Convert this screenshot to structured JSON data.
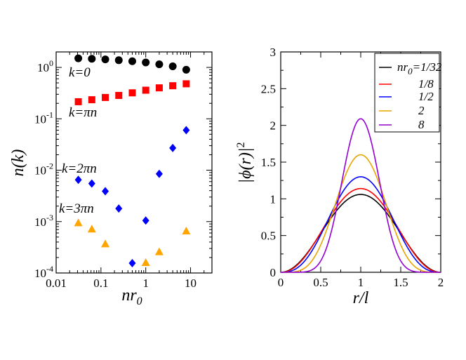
{
  "chart_data": [
    {
      "type": "scatter",
      "xscale": "log",
      "yscale": "log",
      "xlim": [
        0.01,
        30
      ],
      "ylim": [
        0.0001,
        2
      ],
      "xlabel_main": "nr",
      "xlabel_sub": "0",
      "ylabel": "n(k)",
      "xticks": [
        {
          "value": 0.01,
          "label": "0.01"
        },
        {
          "value": 0.1,
          "label": "0.1"
        },
        {
          "value": 1,
          "label": "1"
        },
        {
          "value": 10,
          "label": "10"
        }
      ],
      "yticks": [
        {
          "value": 0.0001,
          "base": "10",
          "exp": "-4"
        },
        {
          "value": 0.001,
          "base": "10",
          "exp": "-3"
        },
        {
          "value": 0.01,
          "base": "10",
          "exp": "-2"
        },
        {
          "value": 0.1,
          "base": "10",
          "exp": "-1"
        },
        {
          "value": 1,
          "base": "10",
          "exp": "0"
        }
      ],
      "series": [
        {
          "name": "k=0",
          "color": "#000000",
          "marker": "circle",
          "x": [
            0.03125,
            0.0625,
            0.125,
            0.25,
            0.5,
            1,
            2,
            4,
            8
          ],
          "y": [
            1.5,
            1.47,
            1.43,
            1.38,
            1.32,
            1.25,
            1.15,
            1.05,
            0.9
          ]
        },
        {
          "name": "k=πn",
          "color": "#ff0000",
          "marker": "square",
          "x": [
            0.03125,
            0.0625,
            0.125,
            0.25,
            0.5,
            1,
            2,
            4,
            8
          ],
          "y": [
            0.215,
            0.235,
            0.26,
            0.285,
            0.32,
            0.36,
            0.4,
            0.44,
            0.48
          ]
        },
        {
          "name": "k=2πn",
          "color": "#0000ff",
          "marker": "diamond",
          "x": [
            0.03125,
            0.0625,
            0.125,
            0.25,
            0.5,
            1,
            2,
            4,
            8
          ],
          "y": [
            0.0065,
            0.0055,
            0.0039,
            0.0018,
            0.000155,
            0.00105,
            0.0085,
            0.027,
            0.06
          ]
        },
        {
          "name": "k=3πn",
          "color": "#ffa500",
          "marker": "triangle",
          "x": [
            0.03125,
            0.0625,
            0.125,
            1,
            2,
            8
          ],
          "y": [
            0.00095,
            0.00072,
            0.00037,
            0.00016,
            0.00026,
            0.00066
          ]
        }
      ],
      "annotations": [
        "k=0",
        "k=πn",
        "k=2πn",
        "k=3πn"
      ]
    },
    {
      "type": "line",
      "xlim": [
        0,
        2
      ],
      "ylim": [
        0,
        3
      ],
      "xlabel": "r/l",
      "ylabel_main": "|ϕ(r)|",
      "ylabel_exp": "2",
      "xticks": [
        "0",
        "0.5",
        "1",
        "1.5",
        "2"
      ],
      "xtick_values": [
        0,
        0.5,
        1,
        1.5,
        2
      ],
      "yticks": [
        "0",
        "0.5",
        "1",
        "1.5",
        "2",
        "2.5",
        "3"
      ],
      "ytick_values": [
        0,
        0.5,
        1,
        1.5,
        2,
        2.5,
        3
      ],
      "legend_position": "top-right",
      "series": [
        {
          "name": "nr",
          "name_sub": "0",
          "name_tail": "=1/32",
          "color": "#000000",
          "peak": 1.06,
          "shape_power": 2.0
        },
        {
          "name": "1/8",
          "color": "#ff0000",
          "peak": 1.14,
          "shape_power": 2.15
        },
        {
          "name": "1/2",
          "color": "#0000ff",
          "peak": 1.3,
          "shape_power": 2.7
        },
        {
          "name": "2",
          "color": "#e8a400",
          "peak": 1.6,
          "shape_power": 4.2
        },
        {
          "name": "8",
          "color": "#9400d3",
          "peak": 2.09,
          "shape_power": 7.5
        }
      ]
    }
  ]
}
